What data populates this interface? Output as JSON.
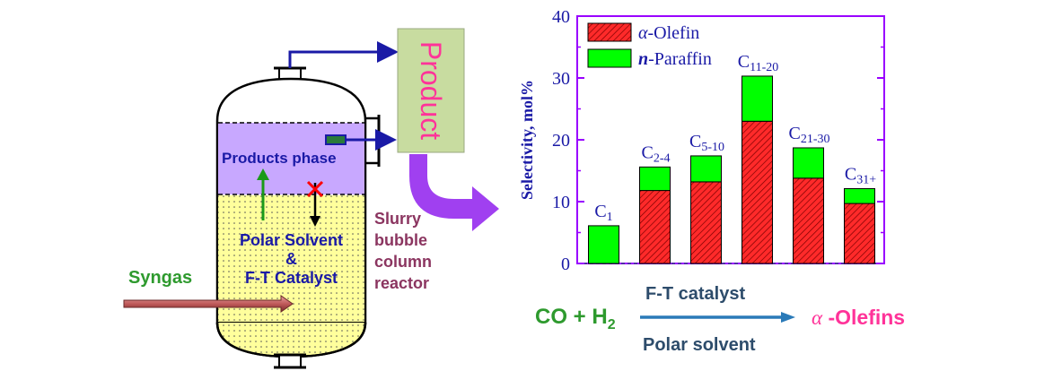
{
  "reactor": {
    "products_phase_label": "Products phase",
    "solvent_line1": "Polar Solvent",
    "solvent_line2": "&",
    "solvent_line3": "F-T Catalyst",
    "syngas_label": "Syngas",
    "reactor_label_lines": [
      "Slurry",
      "bubble",
      "column",
      "reactor"
    ],
    "product_box_label": "Product"
  },
  "colors": {
    "alpha_olefin": "#ff2a2a",
    "n_paraffin": "#00ff00",
    "axis": "#9900ff",
    "products_phase": "#c8a8ff",
    "solvent_phase": "#ffff9c",
    "product_box": "#c8dca0",
    "navy_text": "#1a1aa6",
    "green_text": "#2e9a2e",
    "maroon_text": "#8b3560",
    "pink_text": "#ff3399",
    "slate_text": "#2d4c6b"
  },
  "chart_data": {
    "type": "bar",
    "stacked": true,
    "categories": [
      "C1",
      "C2-4",
      "C5-10",
      "C11-20",
      "C21-30",
      "C31+"
    ],
    "category_labels": [
      {
        "base": "C",
        "sub": "1"
      },
      {
        "base": "C",
        "sub": "2-4"
      },
      {
        "base": "C",
        "sub": "5-10"
      },
      {
        "base": "C",
        "sub": "11-20"
      },
      {
        "base": "C",
        "sub": "21-30"
      },
      {
        "base": "C",
        "sub": "31+"
      }
    ],
    "series": [
      {
        "name": "α-Olefin",
        "legend_italic": "α",
        "legend_rest": "-Olefin",
        "values": [
          0,
          11.8,
          13.2,
          23.0,
          13.8,
          9.7
        ]
      },
      {
        "name": "n-Paraffin",
        "legend_italic": "n",
        "legend_rest": "-Paraffin",
        "values": [
          6.1,
          3.8,
          4.2,
          7.3,
          4.9,
          2.4
        ]
      }
    ],
    "ylabel": "Selectivity, mol%",
    "ylim": [
      0,
      40
    ],
    "yticks": [
      0,
      10,
      20,
      30,
      40
    ],
    "legend": "top-left"
  },
  "reaction": {
    "reactant_main": "CO + H",
    "reactant_sub": "2",
    "catalyst_label": "F-T catalyst",
    "solvent_label": "Polar solvent",
    "product_alpha": "α",
    "product_rest": " -Olefins"
  }
}
